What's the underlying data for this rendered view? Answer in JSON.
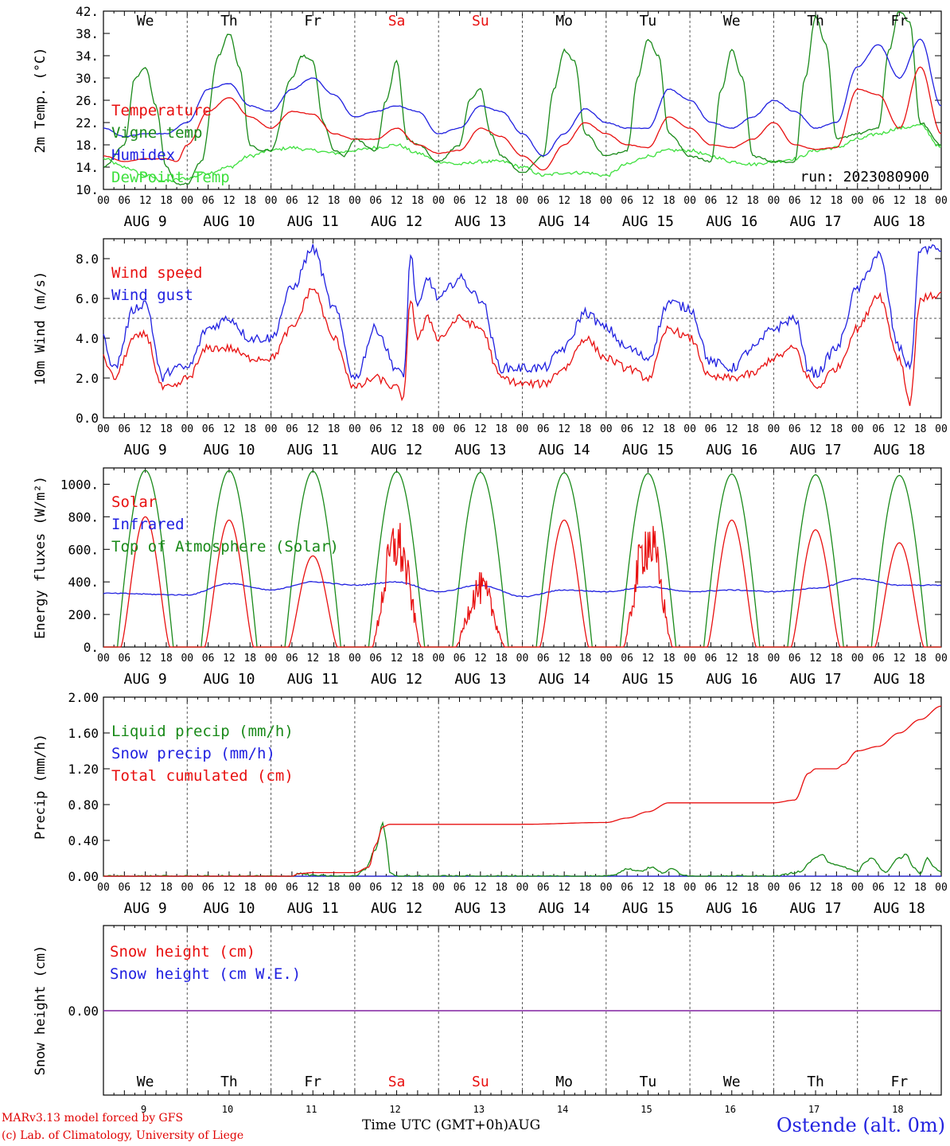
{
  "run_label": "run: 2023080900",
  "days": [
    {
      "weekday": "We",
      "date": "AUG 9",
      "day_num": "9",
      "weekend": false
    },
    {
      "weekday": "Th",
      "date": "AUG 10",
      "day_num": "10",
      "weekend": false
    },
    {
      "weekday": "Fr",
      "date": "AUG 11",
      "day_num": "11",
      "weekend": false
    },
    {
      "weekday": "Sa",
      "date": "AUG 12",
      "day_num": "12",
      "weekend": true
    },
    {
      "weekday": "Su",
      "date": "AUG 13",
      "day_num": "13",
      "weekend": true
    },
    {
      "weekday": "Mo",
      "date": "AUG 14",
      "day_num": "14",
      "weekend": false
    },
    {
      "weekday": "Tu",
      "date": "AUG 15",
      "day_num": "15",
      "weekend": false
    },
    {
      "weekday": "We",
      "date": "AUG 16",
      "day_num": "16",
      "weekend": false
    },
    {
      "weekday": "Th",
      "date": "AUG 17",
      "day_num": "17",
      "weekend": false
    },
    {
      "weekday": "Fr",
      "date": "AUG 18",
      "day_num": "18",
      "weekend": false
    }
  ],
  "hour_ticks": [
    "00",
    "06",
    "12",
    "18"
  ],
  "final_tick": "00",
  "footer": {
    "credit_line1": "MARv3.13 model forced by GFS",
    "credit_line2": "(c) Lab. of Climatology, University of Liege",
    "xaxis_title": "Time UTC (GMT+0h)AUG",
    "station": "Ostende (alt. 0m)"
  },
  "colors": {
    "red": "#e81010",
    "green": "#1a8a1a",
    "blue": "#2020e0",
    "lightgreen": "#3ee03e",
    "purple": "#8020a0",
    "weekend": "#e81010",
    "grid": "#555555"
  },
  "chart_data": [
    {
      "type": "line",
      "ylabel": "2m Temp. (°C)",
      "ylim": [
        10,
        42
      ],
      "yticks": [
        "10.",
        "14.",
        "18.",
        "22.",
        "26.",
        "30.",
        "34.",
        "38.",
        "42."
      ],
      "x_unit": "hours since 2023-08-09 00 UTC",
      "xlim": [
        0,
        240
      ],
      "series": [
        {
          "name": "Temperature",
          "color": "red",
          "x": [
            0,
            6,
            12,
            18,
            21,
            24,
            30,
            36,
            42,
            48,
            54,
            60,
            66,
            72,
            78,
            84,
            90,
            96,
            102,
            108,
            114,
            120,
            126,
            132,
            138,
            144,
            150,
            156,
            162,
            168,
            174,
            180,
            186,
            192,
            198,
            204,
            210,
            216,
            222,
            228,
            234,
            240
          ],
          "values": [
            16,
            15,
            15.5,
            15.5,
            15,
            18,
            24,
            26.5,
            23,
            21,
            24,
            23.5,
            20,
            19,
            19,
            21,
            18,
            16.5,
            17,
            21,
            19.5,
            16,
            13.5,
            18,
            22,
            20,
            18,
            17.5,
            23,
            21,
            18,
            17.5,
            19,
            22,
            18,
            17.2,
            17.5,
            28,
            27,
            21,
            32,
            20
          ]
        },
        {
          "name": "Vigne temp",
          "color": "green",
          "x": [
            0,
            6,
            9,
            12,
            15,
            18,
            21,
            24,
            28,
            33,
            36,
            39,
            42,
            45,
            48,
            54,
            57,
            60,
            63,
            66,
            69,
            72,
            78,
            81,
            84,
            87,
            90,
            96,
            102,
            105,
            108,
            111,
            114,
            120,
            126,
            129,
            132,
            135,
            138,
            144,
            150,
            153,
            156,
            159,
            162,
            168,
            174,
            177,
            180,
            183,
            186,
            192,
            198,
            201,
            204,
            207,
            210,
            216,
            222,
            225,
            228,
            231,
            234,
            240
          ],
          "values": [
            14,
            18,
            30,
            32,
            25,
            14,
            11,
            11,
            15,
            34,
            38,
            32,
            18,
            17,
            17,
            30,
            34,
            33,
            22,
            17,
            16,
            19,
            17,
            26,
            33,
            19,
            18,
            15,
            18,
            26,
            28,
            20,
            16,
            13,
            16,
            28,
            35,
            33,
            20,
            16,
            17,
            30,
            37,
            34,
            20,
            16,
            15,
            28,
            35,
            30,
            16,
            15,
            15,
            30,
            41,
            36,
            19,
            20,
            21,
            35,
            42,
            40,
            22,
            18
          ]
        },
        {
          "name": "Humidex",
          "color": "blue",
          "x": [
            0,
            6,
            12,
            18,
            24,
            30,
            36,
            42,
            48,
            54,
            60,
            66,
            72,
            78,
            84,
            90,
            96,
            102,
            108,
            114,
            120,
            126,
            132,
            138,
            144,
            150,
            156,
            162,
            168,
            174,
            180,
            186,
            192,
            198,
            204,
            210,
            216,
            222,
            228,
            234,
            240
          ],
          "values": [
            21,
            19.5,
            20,
            20,
            22,
            28,
            29,
            25,
            24,
            28,
            30,
            27,
            23,
            24,
            25,
            24,
            20,
            21,
            25,
            24,
            20,
            16,
            20,
            24.5,
            22,
            21,
            21,
            28,
            26,
            22,
            21,
            23,
            26,
            24,
            21,
            22,
            32,
            36,
            30,
            37,
            25
          ]
        },
        {
          "name": "DewPoint Temp",
          "color": "lightgreen",
          "x": [
            0,
            6,
            12,
            18,
            24,
            30,
            36,
            42,
            48,
            54,
            60,
            66,
            72,
            78,
            84,
            90,
            96,
            102,
            108,
            114,
            120,
            126,
            132,
            138,
            144,
            150,
            156,
            162,
            168,
            174,
            180,
            186,
            192,
            198,
            204,
            210,
            216,
            222,
            228,
            234,
            240
          ],
          "values": [
            15.5,
            14,
            12.5,
            11.5,
            12,
            13,
            14,
            16,
            17,
            17.5,
            17,
            16.5,
            17,
            17.5,
            18,
            16.5,
            15,
            14.5,
            15,
            15,
            14,
            12.5,
            13,
            13,
            12.5,
            14.5,
            16,
            17,
            17,
            16,
            15,
            14.5,
            15,
            15.5,
            17,
            17.5,
            19,
            20,
            21,
            21.5,
            17.5
          ]
        }
      ]
    },
    {
      "type": "line",
      "ylabel": "10m Wind (m/s)",
      "ylim": [
        0,
        9
      ],
      "yticks": [
        "0.0",
        "2.0",
        "4.0",
        "6.0",
        "8.0"
      ],
      "reference_line": 5,
      "x_unit": "hours since 2023-08-09 00 UTC",
      "xlim": [
        0,
        240
      ],
      "series": [
        {
          "name": "Wind speed",
          "color": "red",
          "x": [
            0,
            3,
            9,
            12,
            17,
            20,
            24,
            30,
            36,
            42,
            48,
            54,
            60,
            66,
            72,
            78,
            84,
            86,
            88,
            90,
            93,
            96,
            102,
            108,
            114,
            120,
            126,
            132,
            138,
            144,
            150,
            156,
            162,
            168,
            174,
            180,
            186,
            192,
            198,
            202,
            204,
            210,
            216,
            222,
            228,
            231,
            234,
            240
          ],
          "values": [
            3,
            2,
            4,
            4.2,
            1.5,
            1.5,
            2,
            3.5,
            3.5,
            3,
            3,
            4.5,
            6.5,
            4,
            1.5,
            2,
            1.5,
            1,
            6,
            4,
            5,
            4,
            5,
            4.5,
            2,
            1.7,
            1.7,
            2.5,
            4,
            3,
            2.5,
            2,
            4.5,
            4,
            2,
            2,
            2.2,
            3,
            3.5,
            2,
            1.5,
            2.5,
            4.5,
            6.2,
            3,
            0.8,
            6,
            6.2
          ]
        },
        {
          "name": "Wind gust",
          "color": "blue",
          "x": [
            0,
            3,
            9,
            12,
            17,
            20,
            24,
            30,
            36,
            42,
            48,
            54,
            60,
            66,
            72,
            78,
            84,
            86,
            88,
            90,
            93,
            96,
            102,
            108,
            114,
            120,
            126,
            132,
            138,
            144,
            150,
            156,
            162,
            168,
            174,
            180,
            186,
            192,
            198,
            202,
            204,
            210,
            216,
            222,
            228,
            231,
            234,
            240
          ],
          "values": [
            4,
            2.5,
            5.5,
            5.8,
            2,
            2.5,
            2.5,
            4.5,
            5,
            4,
            4,
            6.5,
            8.5,
            5.5,
            2,
            4.5,
            2.5,
            2,
            8.2,
            5.5,
            7,
            6,
            7,
            6,
            2.5,
            2.5,
            2.5,
            3.5,
            5.3,
            4.5,
            3.5,
            3,
            5.8,
            5.5,
            2.8,
            2.5,
            3.5,
            4.5,
            5,
            2.5,
            2.2,
            3.5,
            6.5,
            8.2,
            3.5,
            2.5,
            8.5,
            8.5
          ]
        }
      ]
    },
    {
      "type": "line",
      "ylabel": "Energy fluxes (W/m²)",
      "ylim": [
        0,
        1100
      ],
      "yticks": [
        "0.",
        "200.",
        "400.",
        "600.",
        "800.",
        "1000."
      ],
      "x_unit": "hours since 2023-08-09 00 UTC",
      "xlim": [
        0,
        240
      ],
      "series": [
        {
          "name": "Solar",
          "color": "red",
          "daily_peak_w_m2": [
            800,
            780,
            560,
            740,
            420,
            780,
            760,
            780,
            720,
            640
          ]
        },
        {
          "name": "Infrared",
          "color": "blue",
          "x": [
            0,
            24,
            36,
            48,
            60,
            72,
            84,
            96,
            108,
            120,
            132,
            144,
            156,
            168,
            180,
            192,
            204,
            216,
            228,
            240
          ],
          "values": [
            330,
            320,
            390,
            350,
            400,
            380,
            400,
            340,
            380,
            310,
            350,
            340,
            370,
            340,
            350,
            340,
            360,
            420,
            380,
            380
          ]
        },
        {
          "name": "Top of Atmosphere (Solar)",
          "color": "green",
          "daily_peak_w_m2": [
            1085,
            1083,
            1080,
            1077,
            1073,
            1070,
            1066,
            1062,
            1058,
            1054
          ]
        }
      ]
    },
    {
      "type": "line",
      "ylabel": "Precip (mm/h)",
      "ylim": [
        0,
        2
      ],
      "yticks": [
        "0.00",
        "0.40",
        "0.80",
        "1.20",
        "1.60",
        "2.00"
      ],
      "x_unit": "hours since 2023-08-09 00 UTC",
      "xlim": [
        0,
        240
      ],
      "series": [
        {
          "name": "Liquid precip (mm/h)",
          "color": "green",
          "x": [
            0,
            54,
            56,
            60,
            66,
            72,
            75,
            78,
            80,
            81,
            82,
            84,
            90,
            96,
            144,
            146,
            150,
            154,
            157,
            160,
            163,
            166,
            168,
            192,
            200,
            202,
            204,
            206,
            208,
            212,
            216,
            218,
            220,
            224,
            228,
            230,
            232,
            234,
            236,
            238,
            240
          ],
          "values": [
            0,
            0,
            0.03,
            0.01,
            0,
            0,
            0.08,
            0.3,
            0.6,
            0.4,
            0.05,
            0,
            0,
            0,
            0,
            0.02,
            0.08,
            0.06,
            0.1,
            0.04,
            0.08,
            0.02,
            0,
            0,
            0.05,
            0.15,
            0.2,
            0.25,
            0.15,
            0.1,
            0.05,
            0.15,
            0.2,
            0.05,
            0.2,
            0.25,
            0.1,
            0.02,
            0.2,
            0.1,
            0.05
          ]
        },
        {
          "name": "Snow precip (mm/h)",
          "color": "blue",
          "x": [
            0,
            240
          ],
          "values": [
            0,
            0
          ]
        },
        {
          "name": "Total cumulated (cm)",
          "color": "red",
          "x": [
            0,
            54,
            56,
            60,
            72,
            76,
            78,
            80,
            82,
            84,
            96,
            120,
            144,
            150,
            156,
            162,
            168,
            180,
            192,
            198,
            202,
            204,
            210,
            212,
            216,
            222,
            228,
            234,
            240
          ],
          "values": [
            0,
            0,
            0.03,
            0.04,
            0.04,
            0.1,
            0.35,
            0.55,
            0.58,
            0.58,
            0.58,
            0.58,
            0.6,
            0.65,
            0.72,
            0.82,
            0.82,
            0.82,
            0.82,
            0.85,
            1.15,
            1.2,
            1.2,
            1.25,
            1.4,
            1.45,
            1.6,
            1.75,
            1.9
          ]
        }
      ]
    },
    {
      "type": "line",
      "ylabel": "Snow height (cm)",
      "yticks": [
        "0.00"
      ],
      "x_unit": "hours since 2023-08-09 00 UTC",
      "xlim": [
        0,
        240
      ],
      "series": [
        {
          "name": "Snow height (cm)",
          "color": "red",
          "x": [
            0,
            240
          ],
          "values": [
            0,
            0
          ]
        },
        {
          "name": "Snow height (cm W.E.)",
          "color": "blue",
          "x": [
            0,
            240
          ],
          "values": [
            0,
            0
          ]
        }
      ]
    }
  ]
}
